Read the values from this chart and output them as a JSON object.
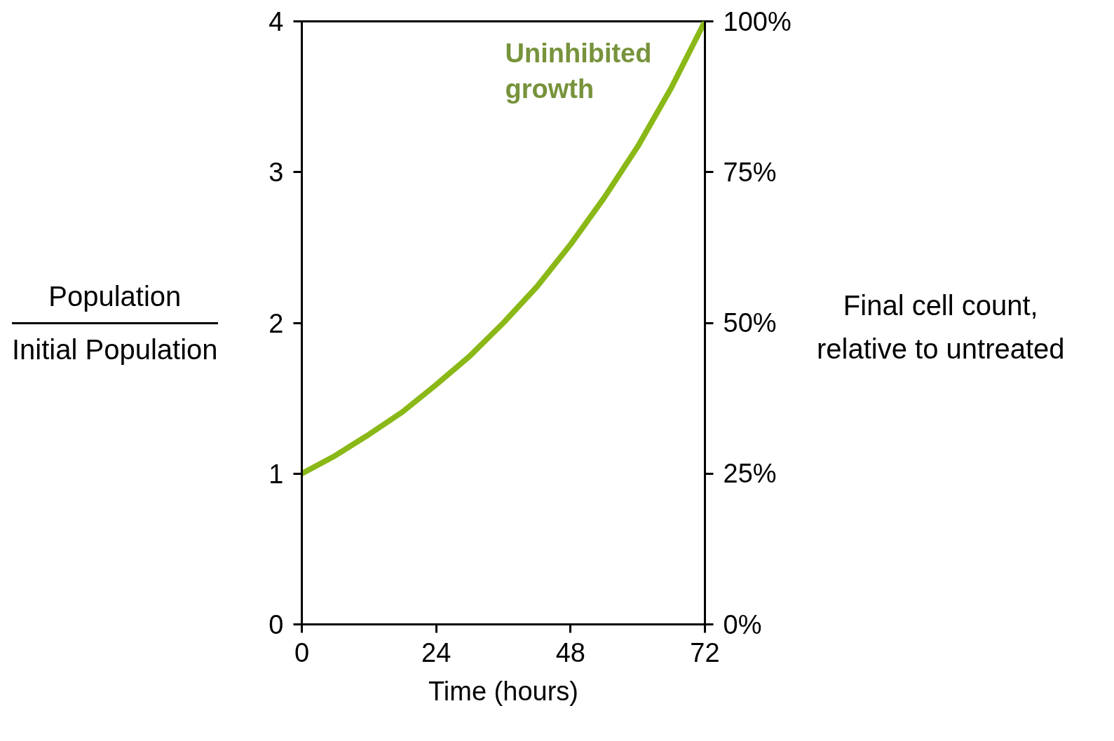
{
  "chart_data": {
    "type": "line",
    "xlabel": "Time (hours)",
    "ylabel": "Population\nInitial Population",
    "y2label": "Final cell count,\nrelative to untreated",
    "x": [
      0,
      6,
      12,
      18,
      24,
      30,
      36,
      42,
      48,
      54,
      60,
      66,
      72
    ],
    "series": [
      {
        "color": "#8ab817",
        "values": [
          1,
          1.12,
          1.26,
          1.41,
          1.59,
          1.78,
          2,
          2.24,
          2.52,
          2.83,
          3.17,
          3.56,
          4
        ]
      }
    ],
    "xlim": [
      0,
      72
    ],
    "xticks": [
      0,
      24,
      48,
      72
    ],
    "ylim": [
      0,
      4
    ],
    "yticks": [
      0,
      1,
      2,
      3,
      4
    ],
    "y2lim": [
      0,
      100
    ],
    "y2ticks": [
      {
        "value": 0,
        "label": "0%"
      },
      {
        "value": 25,
        "label": "25%"
      },
      {
        "value": 50,
        "label": "50%"
      },
      {
        "value": 75,
        "label": "75%"
      },
      {
        "value": 100,
        "label": "100%"
      }
    ],
    "annotations": [
      "Uninhibited\ngrowth"
    ],
    "grid": false,
    "marker": "none",
    "line_style": "solid"
  }
}
